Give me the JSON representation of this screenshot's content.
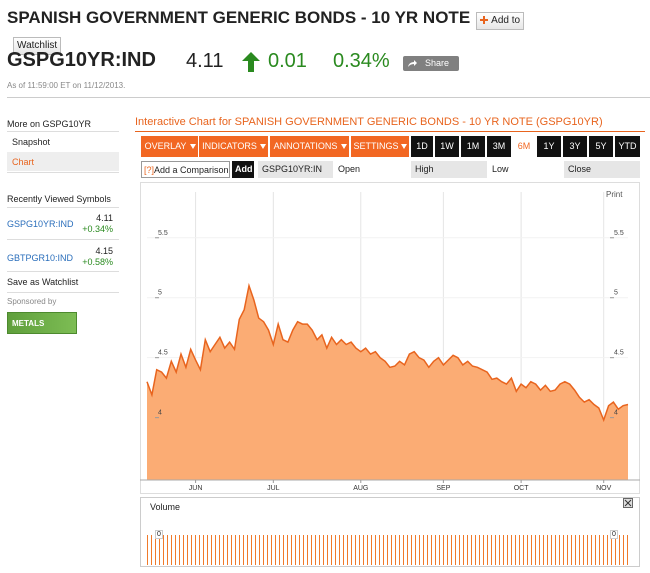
{
  "header": {
    "title": "SPANISH GOVERNMENT GENERIC BONDS - 10 YR NOTE",
    "watchlist_button": "Add to Watchlist"
  },
  "quote": {
    "symbol": "GSPG10YR:IND",
    "price": "4.11",
    "change": "0.01",
    "change_pct": "0.34%",
    "share": "Share",
    "timestamp": "As of 11:59:00 ET on 11/12/2013."
  },
  "sidebar": {
    "heading": "More on GSPG10YR",
    "links": [
      "Snapshot",
      "Chart"
    ],
    "recent_heading": "Recently Viewed Symbols",
    "recent": [
      {
        "symbol": "GSPG10YR:IND",
        "price": "4.11",
        "change": "+0.34%"
      },
      {
        "symbol": "GBTPGR10:IND",
        "price": "4.15",
        "change": "+0.58%"
      }
    ],
    "save": "Save as Watchlist",
    "sponsored": "Sponsored by",
    "sponsor": "METALS"
  },
  "toolbar": {
    "title": "Interactive Chart for SPANISH GOVERNMENT GENERIC BONDS - 10 YR NOTE (GSPG10YR)",
    "menus": [
      "OVERLAY",
      "INDICATORS",
      "ANNOTATIONS",
      "SETTINGS"
    ],
    "ranges": [
      "1D",
      "1W",
      "1M",
      "3M",
      "6M",
      "1Y",
      "3Y",
      "5Y",
      "YTD"
    ],
    "active_range": "6M",
    "compare_hint": "[?]",
    "compare_placeholder": "Add a Comparison",
    "add": "Add",
    "symbol_field": "GSPG10YR:IN",
    "ohlc": [
      "Open",
      "High",
      "Low",
      "Close"
    ],
    "print": "Print"
  },
  "chart_data": {
    "type": "area",
    "line_color": "#e8641e",
    "fill_color": "#fbac74",
    "values": [
      4.3,
      4.19,
      4.4,
      4.38,
      4.33,
      4.47,
      4.38,
      4.53,
      4.42,
      4.57,
      4.48,
      4.4,
      4.65,
      4.55,
      4.61,
      4.67,
      4.58,
      4.63,
      4.57,
      4.82,
      4.9,
      5.1,
      4.98,
      4.83,
      4.8,
      4.73,
      4.61,
      4.78,
      4.65,
      4.63,
      4.73,
      4.8,
      4.78,
      4.78,
      4.73,
      4.65,
      4.69,
      4.58,
      4.67,
      4.61,
      4.65,
      4.61,
      4.63,
      4.58,
      4.55,
      4.58,
      4.53,
      4.55,
      4.5,
      4.47,
      4.42,
      4.43,
      4.47,
      4.44,
      4.53,
      4.55,
      4.5,
      4.48,
      4.42,
      4.47,
      4.5,
      4.44,
      4.48,
      4.52,
      4.5,
      4.44,
      4.47,
      4.43,
      4.42,
      4.4,
      4.38,
      4.32,
      4.33,
      4.3,
      4.28,
      4.33,
      4.22,
      4.28,
      4.25,
      4.3,
      4.28,
      4.23,
      4.27,
      4.22,
      4.23,
      4.28,
      4.3,
      4.28,
      4.23,
      4.17,
      4.13,
      4.15,
      4.11,
      4.08,
      3.98,
      4.1,
      4.13,
      4.07,
      4.1,
      4.11
    ],
    "xlim": [
      0,
      99
    ],
    "xticks": [
      {
        "value": 10,
        "label": "JUN"
      },
      {
        "value": 26,
        "label": "JUL"
      },
      {
        "value": 44,
        "label": "AUG"
      },
      {
        "value": 61,
        "label": "SEP"
      },
      {
        "value": 77,
        "label": "OCT"
      },
      {
        "value": 94,
        "label": "NOV"
      }
    ],
    "ylim": [
      3.48,
      5.94
    ],
    "yticks": [
      4,
      4.5,
      5,
      5.5
    ],
    "grid": true,
    "volume": {
      "label": "Volume",
      "ticks": [
        0
      ]
    }
  }
}
